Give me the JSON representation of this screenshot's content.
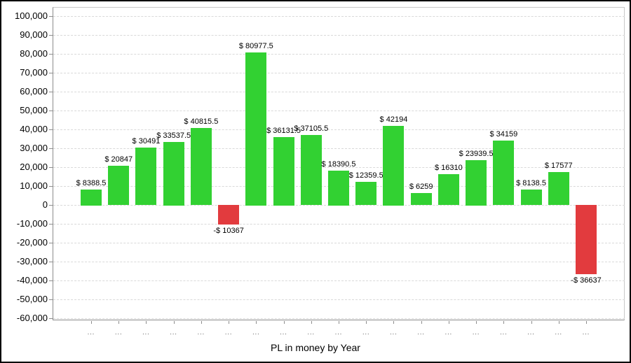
{
  "chart_data": {
    "type": "bar",
    "title": "PL in money by Year",
    "categories": [
      "...",
      "...",
      "...",
      "...",
      "...",
      "...",
      "...",
      "...",
      "...",
      "...",
      "...",
      "...",
      "...",
      "...",
      "...",
      "...",
      "...",
      "...",
      "..."
    ],
    "values": [
      8388.5,
      20847,
      30491,
      33537.5,
      40815.5,
      -10367,
      80977.5,
      36131.5,
      37105.5,
      18390.5,
      12359.5,
      42194,
      6259,
      16310,
      23939.5,
      34159,
      8138.5,
      17577,
      -36637
    ],
    "labels": [
      "$ 8388.5",
      "$ 20847",
      "$ 30491",
      "$ 33537.5",
      "$ 40815.5",
      "-$ 10367",
      "$ 80977.5",
      "$ 36131.5",
      "$ 37105.5",
      "$ 18390.5",
      "$ 12359.5",
      "$ 42194",
      "$ 6259",
      "$ 16310",
      "$ 23939.5",
      "$ 34159",
      "$ 8138.5",
      "$ 17577",
      "-$ 36637"
    ],
    "y_ticks": [
      "100,000",
      "90,000",
      "80,000",
      "70,000",
      "60,000",
      "50,000",
      "40,000",
      "30,000",
      "20,000",
      "10,000",
      "0",
      "-10,000",
      "-20,000",
      "-30,000",
      "-40,000",
      "-50,000",
      "-60,000"
    ],
    "y_tick_values": [
      100000,
      90000,
      80000,
      70000,
      60000,
      50000,
      40000,
      30000,
      20000,
      10000,
      0,
      -10000,
      -20000,
      -30000,
      -40000,
      -50000,
      -60000
    ],
    "ylim": [
      -61000,
      105000
    ],
    "grid": "horizontal-dashed",
    "legend": "none",
    "xlabel": "",
    "ylabel": "",
    "colors": {
      "positive_bar": "#32d132",
      "negative_bar": "#e23b3e",
      "gridline": "#d9d9d9",
      "axis": "#8c8c8c",
      "label_text": "#000000"
    }
  }
}
